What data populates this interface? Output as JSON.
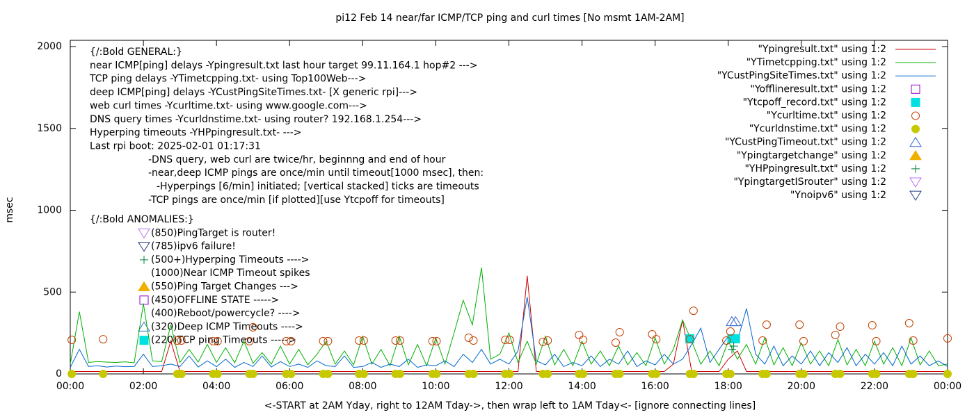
{
  "chart_data": {
    "type": "line",
    "title": "pi12 Feb 14  near/far ICMP/TCP ping and curl times [No msmt 1AM-2AM]",
    "x_label": "<-START at 2AM Yday, right to 12AM Tday->, then wrap left to 1AM Tday<- [ignore connecting lines]",
    "y_label": "msec",
    "xlim": [
      0,
      24
    ],
    "ylim": [
      0,
      2000
    ],
    "yticks": [
      0,
      500,
      1000,
      1500,
      2000
    ],
    "xticks": [
      {
        "value": 0,
        "label": "00:00"
      },
      {
        "value": 2,
        "label": "02:00"
      },
      {
        "value": 4,
        "label": "04:00"
      },
      {
        "value": 6,
        "label": "06:00"
      },
      {
        "value": 8,
        "label": "08:00"
      },
      {
        "value": 10,
        "label": "10:00"
      },
      {
        "value": 12,
        "label": "12:00"
      },
      {
        "value": 14,
        "label": "14:00"
      },
      {
        "value": 16,
        "label": "16:00"
      },
      {
        "value": 18,
        "label": "18:00"
      },
      {
        "value": 20,
        "label": "20:00"
      },
      {
        "value": 22,
        "label": "22:00"
      },
      {
        "value": 24,
        "label": "00:00"
      }
    ],
    "legend": "top-right",
    "x": [
      0,
      0.25,
      0.5,
      0.75,
      1,
      1.25,
      1.5,
      1.75,
      2,
      2.25,
      2.5,
      2.75,
      3,
      3.25,
      3.5,
      3.75,
      4,
      4.25,
      4.5,
      4.75,
      5,
      5.25,
      5.5,
      5.75,
      6,
      6.25,
      6.5,
      6.75,
      7,
      7.25,
      7.5,
      7.75,
      8,
      8.25,
      8.5,
      8.75,
      9,
      9.25,
      9.5,
      9.75,
      10,
      10.25,
      10.5,
      10.75,
      11,
      11.25,
      11.5,
      11.75,
      12,
      12.25,
      12.5,
      12.75,
      13,
      13.25,
      13.5,
      13.75,
      14,
      14.25,
      14.5,
      14.75,
      15,
      15.25,
      15.5,
      15.75,
      16,
      16.25,
      16.5,
      16.75,
      17,
      17.25,
      17.5,
      17.75,
      18,
      18.25,
      18.5,
      18.75,
      19,
      19.25,
      19.5,
      19.75,
      20,
      20.25,
      20.5,
      20.75,
      21,
      21.25,
      21.5,
      21.75,
      22,
      22.25,
      22.5,
      22.75,
      23,
      23.25,
      23.5,
      23.75,
      24
    ],
    "annotations": [
      "{/:Bold GENERAL:}",
      "near ICMP[ping] delays -Ypingresult.txt last hour target 99.11.164.1 hop#2 --->",
      "TCP ping delays -YTimetcpping.txt- using Top100Web--->",
      "deep ICMP[ping] delays -YCustPingSiteTimes.txt- [X generic rpi]--->",
      "web curl times -Ycurltime.txt- using www.google.com--->",
      "DNS query times -Ycurldnstime.txt- using router? 192.168.1.254--->",
      "Hyperping timeouts -YHPpingresult.txt- --->",
      "Last rpi boot: 2025-02-01 01:17:31",
      "-DNS query, web curl are twice/hr, beginnng and end of hour",
      "-near,deep ICMP pings are once/min until timeout[1000 msec], then:",
      "-Hyperpings [6/min] initiated; [vertical stacked] ticks are timeouts",
      "-TCP pings are once/min [if plotted][use Ytcpoff for timeouts]",
      "{/:Bold ANOMALIES:}",
      "(850)PingTarget is router!",
      "(785)ipv6 failure!",
      "(500+)Hyperping Timeouts ---->",
      "(1000)Near ICMP Timeout spikes",
      "(550)Ping Target Changes --->",
      "(450)OFFLINE STATE ----->",
      "(400)Reboot/powercycle? ---->",
      "(320)Deep ICMP Timeouts ---->",
      "(220)TCP ping Timeouts ----->"
    ],
    "series": [
      {
        "name": "\"Ypingresult.txt\" using 1:2",
        "color": "#cc0000",
        "marker": "line",
        "values": [
          15,
          15,
          15,
          15,
          15,
          15,
          15,
          15,
          15,
          15,
          15,
          200,
          15,
          15,
          15,
          15,
          15,
          15,
          15,
          15,
          15,
          15,
          15,
          15,
          15,
          15,
          15,
          15,
          15,
          15,
          15,
          15,
          15,
          15,
          15,
          15,
          15,
          15,
          15,
          15,
          15,
          15,
          15,
          15,
          15,
          15,
          15,
          15,
          15,
          15,
          600,
          15,
          15,
          15,
          15,
          15,
          15,
          15,
          15,
          15,
          15,
          15,
          15,
          15,
          15,
          15,
          60,
          330,
          15,
          15,
          15,
          15,
          90,
          140,
          15,
          15,
          15,
          15,
          15,
          15,
          15,
          15,
          15,
          15,
          15,
          15,
          15,
          15,
          15,
          15,
          15,
          15,
          15,
          15,
          15,
          15,
          15
        ]
      },
      {
        "name": "\"YTimetcpping.txt\" using 1:2",
        "color": "#00b000",
        "marker": "line",
        "values": [
          60,
          380,
          70,
          75,
          72,
          70,
          74,
          68,
          430,
          80,
          75,
          300,
          70,
          150,
          72,
          180,
          70,
          160,
          68,
          200,
          65,
          130,
          60,
          170,
          60,
          150,
          55,
          120,
          200,
          60,
          140,
          55,
          230,
          60,
          150,
          50,
          230,
          55,
          180,
          50,
          220,
          60,
          250,
          450,
          300,
          650,
          90,
          120,
          250,
          70,
          200,
          60,
          230,
          55,
          150,
          50,
          200,
          60,
          140,
          50,
          170,
          55,
          130,
          50,
          220,
          60,
          150,
          330,
          200,
          60,
          140,
          50,
          200,
          90,
          180,
          60,
          220,
          55,
          160,
          50,
          190,
          60,
          140,
          50,
          210,
          55,
          150,
          50,
          200,
          60,
          160,
          50,
          220,
          55,
          140,
          50,
          60
        ]
      },
      {
        "name": "\"YCustPingSiteTimes.txt\" using 1:2",
        "color": "#0066cc",
        "marker": "line",
        "values": [
          40,
          150,
          45,
          50,
          42,
          48,
          44,
          46,
          120,
          45,
          50,
          60,
          45,
          110,
          42,
          80,
          44,
          90,
          40,
          70,
          45,
          110,
          42,
          75,
          45,
          60,
          40,
          80,
          50,
          45,
          110,
          40,
          45,
          70,
          40,
          60,
          45,
          90,
          40,
          55,
          50,
          80,
          45,
          120,
          70,
          150,
          60,
          90,
          60,
          140,
          470,
          80,
          55,
          120,
          45,
          70,
          50,
          110,
          45,
          90,
          60,
          140,
          45,
          80,
          55,
          120,
          60,
          90,
          180,
          280,
          70,
          150,
          230,
          200,
          400,
          120,
          60,
          170,
          50,
          110,
          60,
          140,
          50,
          130,
          70,
          160,
          50,
          120,
          60,
          130,
          50,
          170,
          60,
          110,
          50,
          80,
          45
        ]
      },
      {
        "name": "\"Yofflineresult.txt\" using 1:2",
        "color": "#9400d3",
        "marker": "square-open",
        "x": [],
        "values": []
      },
      {
        "name": "\"Ytcpoff_record.txt\" using 1:2",
        "color": "#00e0e0",
        "marker": "square",
        "x": [
          16.95,
          18.1,
          18.2
        ],
        "values": [
          215,
          215,
          215
        ]
      },
      {
        "name": "\"Ycurltime.txt\" using 1:2",
        "color": "#c04000",
        "marker": "circle-open",
        "x": [
          0.04,
          0.9,
          2.93,
          3.04,
          3.91,
          4.03,
          4.9,
          5.0,
          5.91,
          6.04,
          6.92,
          7.05,
          7.9,
          8.03,
          8.9,
          9.02,
          9.91,
          10.02,
          10.9,
          11.03,
          11.9,
          12.02,
          12.93,
          13.06,
          13.92,
          14.03,
          14.92,
          15.03,
          15.92,
          16.03,
          16.95,
          17.05,
          17.95,
          18.06,
          18.94,
          19.05,
          19.95,
          20.06,
          20.93,
          21.06,
          21.94,
          22.05,
          22.95,
          23.06,
          24.0
        ],
        "values": [
          208,
          212,
          204,
          204,
          200,
          200,
          200,
          285,
          200,
          200,
          200,
          200,
          204,
          204,
          204,
          204,
          200,
          200,
          221,
          204,
          208,
          208,
          196,
          204,
          238,
          208,
          191,
          255,
          242,
          212,
          212,
          386,
          204,
          259,
          204,
          301,
          301,
          200,
          238,
          289,
          297,
          200,
          310,
          204,
          217
        ]
      },
      {
        "name": "\"Ycurldnstime.txt\" using 1:2",
        "color": "#c8c800",
        "marker": "circle",
        "x": [
          0.04,
          0.9,
          2.93,
          3.04,
          3.91,
          4.03,
          4.9,
          5.0,
          5.91,
          6.04,
          6.92,
          7.05,
          7.9,
          8.03,
          8.9,
          9.02,
          9.91,
          10.02,
          10.9,
          11.03,
          11.9,
          12.02,
          12.93,
          13.06,
          13.92,
          14.03,
          14.92,
          15.03,
          15.92,
          16.03,
          16.95,
          17.05,
          17.95,
          18.06,
          18.94,
          19.05,
          19.95,
          20.06,
          20.93,
          21.06,
          21.94,
          22.05,
          22.95,
          23.06,
          24.0
        ],
        "values": [
          0,
          0,
          0,
          0,
          0,
          0,
          0,
          0,
          0,
          0,
          0,
          0,
          0,
          0,
          0,
          0,
          0,
          0,
          0,
          0,
          0,
          0,
          0,
          0,
          0,
          0,
          0,
          0,
          0,
          0,
          0,
          0,
          0,
          0,
          0,
          0,
          0,
          0,
          0,
          0,
          0,
          0,
          0,
          0,
          0
        ]
      },
      {
        "name": "\"YCustPingTimeout.txt\" using 1:2",
        "color": "#3366cc",
        "marker": "triangle-up-open",
        "x": [
          18.1,
          18.2
        ],
        "values": [
          320,
          320
        ]
      },
      {
        "name": "\"Ypingtargetchange\" using 1:2",
        "color": "#f0b000",
        "marker": "triangle-up",
        "x": [],
        "values": []
      },
      {
        "name": "\"YHPpingresult.txt\" using 1:2",
        "color": "#008040",
        "marker": "plus",
        "x": [
          18.1,
          18.15
        ],
        "values": [
          150,
          170
        ]
      },
      {
        "name": "\"YpingtargetISrouter\" using 1:2",
        "color": "#c070f0",
        "marker": "triangle-down-open",
        "x": [],
        "values": []
      },
      {
        "name": "\"Ynoipv6\" using 1:2",
        "color": "#204080",
        "marker": "triangle-down-open",
        "x": [],
        "values": []
      }
    ]
  }
}
